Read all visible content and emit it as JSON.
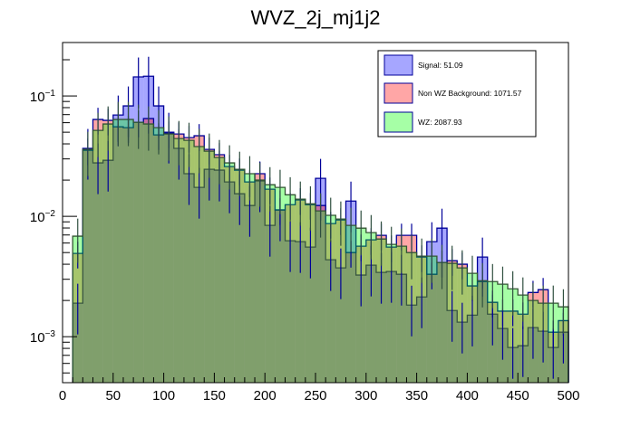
{
  "chart_data": {
    "type": "histogram-step-overlay",
    "title": "WVZ_2j_mj1j2",
    "xlabel": "",
    "ylabel": "",
    "xlim": [
      0,
      500
    ],
    "ylim": [
      0.000415,
      0.278
    ],
    "yscale": "log",
    "bin_width": 10,
    "bin_edges_start": 10,
    "x_ticks": [
      "0",
      "50",
      "100",
      "150",
      "200",
      "250",
      "300",
      "350",
      "400",
      "450",
      "500"
    ],
    "x_tick_values": [
      0,
      50,
      100,
      150,
      200,
      250,
      300,
      350,
      400,
      450,
      500
    ],
    "y_ticks": [
      {
        "value": 0.1,
        "base": "10",
        "exp": "−1"
      },
      {
        "value": 0.01,
        "base": "10",
        "exp": "−2"
      },
      {
        "value": 0.001,
        "base": "10",
        "exp": "−3"
      }
    ],
    "grid": false,
    "legend_position": "top-right",
    "series": [
      {
        "name": "Signal",
        "legend": "Signal: 51.09",
        "fill": "#0000ff",
        "line": "#000099",
        "err_color": "#000099",
        "rel_err": 0.45,
        "values": [
          0.0019,
          0.0367,
          0.0278,
          0.0292,
          0.0695,
          0.0827,
          0.144,
          0.146,
          0.0827,
          0.05,
          0.0367,
          0.0226,
          0.0174,
          0.0246,
          0.0242,
          0.0193,
          0.0154,
          0.0123,
          0.0197,
          0.00841,
          0.0113,
          0.00627,
          0.00616,
          0.00555,
          0.0207,
          0.00436,
          0.00373,
          0.0134,
          0.00325,
          0.00393,
          0.00342,
          0.00348,
          0.0033,
          0.00183,
          0.00214,
          0.00616,
          0.00798,
          0.00165,
          0.00132,
          0.00151,
          0.00459,
          0.00154,
          0.00117,
          0.000813,
          0.000841,
          0.00119,
          0.00111,
          0.000813,
          0.00109
        ]
      },
      {
        "name": "Non WZ Background",
        "legend": "Non WZ Background: 1071.57",
        "fill": "#ff0000",
        "line": "#000099",
        "err_color": "#000099",
        "rel_err": 0.25,
        "values": [
          0.00492,
          0.0354,
          0.0638,
          0.0627,
          0.0554,
          0.0545,
          0.0605,
          0.0649,
          0.0475,
          0.0491,
          0.0483,
          0.0451,
          0.0467,
          0.036,
          0.0325,
          0.0259,
          0.0242,
          0.0193,
          0.0226,
          0.0168,
          0.0113,
          0.0125,
          0.0137,
          0.0125,
          0.0123,
          0.00871,
          0.00933,
          0.005,
          0.00565,
          0.00638,
          0.00695,
          0.00555,
          0.00695,
          0.00695,
          0.00459,
          0.0033,
          0.00414,
          0.00428,
          0.004,
          0.00264,
          0.00287,
          0.00193,
          0.00163,
          0.00163,
          0.00154,
          0.00233,
          0.00246,
          0.00109,
          0.00136
        ]
      },
      {
        "name": "WZ",
        "legend": "WZ: 2087.93",
        "fill": "#00ff00",
        "line": "#335533",
        "err_color": "#2f4f3f",
        "rel_err": 0.4,
        "values": [
          0.00684,
          0.036,
          0.0518,
          0.0585,
          0.0638,
          0.0638,
          0.0605,
          0.0585,
          0.0545,
          0.0483,
          0.0443,
          0.0428,
          0.038,
          0.0348,
          0.0308,
          0.0278,
          0.0246,
          0.0226,
          0.02,
          0.0183,
          0.0174,
          0.0151,
          0.0139,
          0.0127,
          0.0111,
          0.0102,
          0.00949,
          0.00841,
          0.00798,
          0.00732,
          0.00648,
          0.00585,
          0.00565,
          0.005,
          0.00467,
          0.00467,
          0.00414,
          0.00407,
          0.00373,
          0.00336,
          0.00292,
          0.00287,
          0.00273,
          0.0025,
          0.00222,
          0.002,
          0.0019,
          0.0019,
          0.00177
        ]
      }
    ]
  }
}
